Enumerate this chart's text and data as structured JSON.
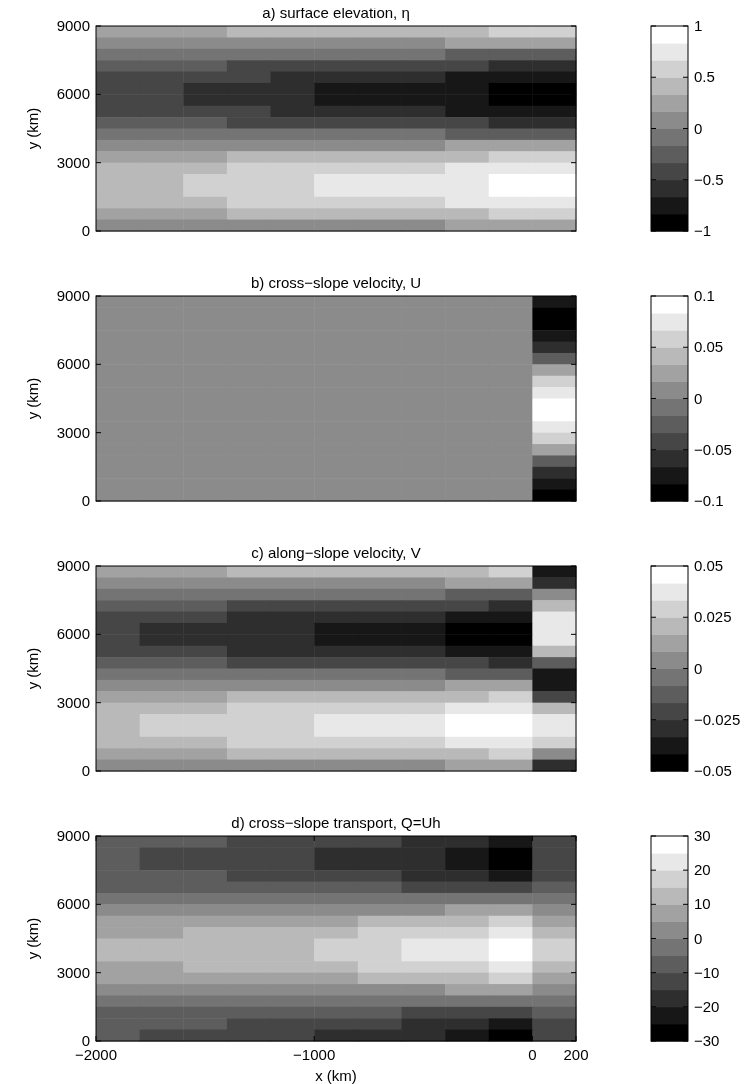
{
  "chart_data": [
    {
      "type": "heatmap",
      "title": "a) surface elevation, η",
      "ylabel": "y (km)",
      "xlim": [
        -2000,
        200
      ],
      "ylim": [
        0,
        9000
      ],
      "yticks": [
        0,
        3000,
        6000,
        9000
      ],
      "tick_labels": "y",
      "clim": [
        -1,
        1
      ],
      "cticks": [
        {
          "value": -1,
          "label": "−1"
        },
        {
          "value": -0.5,
          "label": "−0.5"
        },
        0,
        0.5,
        1
      ],
      "cells": [
        [
          0.25,
          0.28,
          0.31,
          0.34,
          0.36,
          0.39,
          0.42,
          0.45,
          0.48,
          0.53,
          0.56
        ],
        [
          0.09,
          0.1,
          0.11,
          0.12,
          0.13,
          0.14,
          0.15,
          0.16,
          0.17,
          0.19,
          0.2
        ],
        [
          -0.09,
          -0.1,
          -0.11,
          -0.12,
          -0.13,
          -0.14,
          -0.15,
          -0.16,
          -0.17,
          -0.19,
          -0.2
        ],
        [
          -0.25,
          -0.28,
          -0.31,
          -0.34,
          -0.36,
          -0.39,
          -0.42,
          -0.45,
          -0.48,
          -0.53,
          -0.56
        ],
        [
          -0.37,
          -0.42,
          -0.46,
          -0.5,
          -0.54,
          -0.58,
          -0.62,
          -0.66,
          -0.71,
          -0.79,
          -0.83
        ],
        [
          -0.44,
          -0.49,
          -0.54,
          -0.59,
          -0.64,
          -0.69,
          -0.74,
          -0.78,
          -0.83,
          -0.93,
          -0.98
        ],
        [
          -0.44,
          -0.49,
          -0.54,
          -0.59,
          -0.64,
          -0.69,
          -0.74,
          -0.78,
          -0.83,
          -0.93,
          -0.98
        ],
        [
          -0.37,
          -0.42,
          -0.46,
          -0.5,
          -0.54,
          -0.58,
          -0.62,
          -0.66,
          -0.71,
          -0.79,
          -0.83
        ],
        [
          -0.25,
          -0.28,
          -0.31,
          -0.34,
          -0.36,
          -0.39,
          -0.42,
          -0.45,
          -0.48,
          -0.53,
          -0.56
        ],
        [
          -0.09,
          -0.1,
          -0.11,
          -0.12,
          -0.13,
          -0.14,
          -0.15,
          -0.16,
          -0.17,
          -0.19,
          -0.2
        ],
        [
          0.09,
          0.1,
          0.11,
          0.12,
          0.13,
          0.14,
          0.15,
          0.16,
          0.17,
          0.19,
          0.2
        ],
        [
          0.25,
          0.28,
          0.31,
          0.34,
          0.36,
          0.39,
          0.42,
          0.45,
          0.48,
          0.53,
          0.56
        ],
        [
          0.37,
          0.42,
          0.46,
          0.5,
          0.54,
          0.58,
          0.62,
          0.66,
          0.71,
          0.79,
          0.83
        ],
        [
          0.44,
          0.49,
          0.54,
          0.59,
          0.64,
          0.69,
          0.74,
          0.78,
          0.83,
          0.93,
          0.98
        ],
        [
          0.44,
          0.49,
          0.54,
          0.59,
          0.64,
          0.69,
          0.74,
          0.78,
          0.83,
          0.93,
          0.98
        ],
        [
          0.37,
          0.42,
          0.46,
          0.5,
          0.54,
          0.58,
          0.62,
          0.66,
          0.71,
          0.79,
          0.83
        ],
        [
          0.25,
          0.28,
          0.31,
          0.34,
          0.36,
          0.39,
          0.42,
          0.45,
          0.48,
          0.53,
          0.56
        ],
        [
          0.09,
          0.1,
          0.11,
          0.12,
          0.13,
          0.14,
          0.15,
          0.16,
          0.17,
          0.19,
          0.2
        ]
      ]
    },
    {
      "type": "heatmap",
      "title": "b) cross−slope velocity, U",
      "ylabel": "y (km)",
      "xlim": [
        -2000,
        200
      ],
      "ylim": [
        0,
        9000
      ],
      "yticks": [
        0,
        3000,
        6000,
        9000
      ],
      "tick_labels": "y",
      "clim": [
        -0.1,
        0.1
      ],
      "cticks": [
        {
          "value": -0.1,
          "label": "−0.1"
        },
        {
          "value": -0.05,
          "label": "−0.05"
        },
        0,
        0.05,
        0.1
      ],
      "cells": [
        [
          0,
          0,
          0,
          0,
          0,
          0,
          0,
          0,
          0,
          0,
          -0.08
        ],
        [
          0,
          0,
          0,
          0,
          0,
          0,
          0,
          0,
          0,
          0,
          -0.1
        ],
        [
          0,
          0,
          0,
          0,
          0,
          0,
          0,
          0,
          0,
          0,
          -0.1
        ],
        [
          0,
          0,
          0,
          0,
          0,
          0,
          0,
          0,
          0,
          0,
          -0.08
        ],
        [
          0,
          0,
          0,
          0,
          0,
          0,
          0,
          0,
          0,
          0,
          -0.06
        ],
        [
          0,
          0,
          0,
          0,
          0,
          0,
          0,
          0,
          0,
          0,
          -0.02
        ],
        [
          0,
          0,
          0,
          0,
          0,
          0,
          0,
          0,
          0,
          0,
          0.02
        ],
        [
          0,
          0,
          0,
          0,
          0,
          0,
          0,
          0,
          0,
          0,
          0.06
        ],
        [
          0,
          0,
          0,
          0,
          0,
          0,
          0,
          0,
          0,
          0,
          0.08
        ],
        [
          0,
          0,
          0,
          0,
          0,
          0,
          0,
          0,
          0,
          0,
          0.1
        ],
        [
          0,
          0,
          0,
          0,
          0,
          0,
          0,
          0,
          0,
          0,
          0.1
        ],
        [
          0,
          0,
          0,
          0,
          0,
          0,
          0,
          0,
          0,
          0,
          0.08
        ],
        [
          0,
          0,
          0,
          0,
          0,
          0,
          0,
          0,
          0,
          0,
          0.06
        ],
        [
          0,
          0,
          0,
          0,
          0,
          0,
          0,
          0,
          0,
          0,
          0.02
        ],
        [
          0,
          0,
          0,
          0,
          0,
          0,
          0,
          0,
          0,
          0,
          -0.02
        ],
        [
          0,
          0,
          0,
          0,
          0,
          0,
          0,
          0,
          0,
          0,
          -0.06
        ],
        [
          0,
          0,
          0,
          0,
          0,
          0,
          0,
          0,
          0,
          0,
          -0.08
        ],
        [
          0,
          0,
          0,
          0,
          0,
          0,
          0,
          0,
          0,
          0,
          -0.1
        ]
      ]
    },
    {
      "type": "heatmap",
      "title": "c) along−slope velocity, V",
      "ylabel": "y (km)",
      "xlim": [
        -2000,
        200
      ],
      "ylim": [
        0,
        9000
      ],
      "yticks": [
        0,
        3000,
        6000,
        9000
      ],
      "tick_labels": "y",
      "clim": [
        -0.05,
        0.05
      ],
      "cticks": [
        {
          "value": -0.05,
          "label": "−0.05"
        },
        {
          "value": -0.025,
          "label": "−0.025"
        },
        0,
        0.025,
        0.05
      ],
      "cells": [
        [
          0.013,
          0.014,
          0.016,
          0.017,
          0.018,
          0.02,
          0.021,
          0.023,
          0.024,
          0.027,
          -0.04
        ],
        [
          0.005,
          0.005,
          0.006,
          0.006,
          0.007,
          0.007,
          0.008,
          0.008,
          0.009,
          0.01,
          -0.03
        ],
        [
          -0.005,
          -0.005,
          -0.006,
          -0.006,
          -0.007,
          -0.007,
          -0.008,
          -0.008,
          -0.009,
          -0.01,
          0
        ],
        [
          -0.013,
          -0.014,
          -0.016,
          -0.017,
          -0.018,
          -0.02,
          -0.021,
          -0.023,
          -0.024,
          -0.027,
          0.02
        ],
        [
          -0.019,
          -0.021,
          -0.023,
          -0.025,
          -0.027,
          -0.029,
          -0.031,
          -0.033,
          -0.036,
          -0.04,
          0.04
        ],
        [
          -0.022,
          -0.025,
          -0.027,
          -0.03,
          -0.032,
          -0.035,
          -0.037,
          -0.039,
          -0.042,
          -0.047,
          0.04
        ],
        [
          -0.022,
          -0.025,
          -0.027,
          -0.03,
          -0.032,
          -0.035,
          -0.037,
          -0.039,
          -0.042,
          -0.047,
          0.04
        ],
        [
          -0.019,
          -0.021,
          -0.023,
          -0.025,
          -0.027,
          -0.029,
          -0.031,
          -0.033,
          -0.036,
          -0.04,
          0.02
        ],
        [
          -0.013,
          -0.014,
          -0.016,
          -0.017,
          -0.018,
          -0.02,
          -0.021,
          -0.023,
          -0.024,
          -0.027,
          -0.01
        ],
        [
          -0.005,
          -0.005,
          -0.006,
          -0.006,
          -0.007,
          -0.007,
          -0.008,
          -0.008,
          -0.009,
          -0.01,
          -0.04
        ],
        [
          0.005,
          0.005,
          0.006,
          0.006,
          0.007,
          0.007,
          0.008,
          0.008,
          0.009,
          0.01,
          -0.04
        ],
        [
          0.013,
          0.014,
          0.016,
          0.017,
          0.018,
          0.02,
          0.021,
          0.023,
          0.024,
          0.027,
          -0.02
        ],
        [
          0.019,
          0.021,
          0.023,
          0.025,
          0.027,
          0.029,
          0.031,
          0.033,
          0.036,
          0.04,
          0.02
        ],
        [
          0.022,
          0.025,
          0.027,
          0.03,
          0.032,
          0.035,
          0.037,
          0.039,
          0.042,
          0.047,
          0.04
        ],
        [
          0.022,
          0.025,
          0.027,
          0.03,
          0.032,
          0.035,
          0.037,
          0.039,
          0.042,
          0.047,
          0.04
        ],
        [
          0.019,
          0.021,
          0.023,
          0.025,
          0.027,
          0.029,
          0.031,
          0.033,
          0.036,
          0.04,
          0.03
        ],
        [
          0.013,
          0.014,
          0.016,
          0.017,
          0.018,
          0.02,
          0.021,
          0.023,
          0.024,
          0.027,
          0
        ],
        [
          0.005,
          0.005,
          0.006,
          0.006,
          0.007,
          0.007,
          0.008,
          0.008,
          0.009,
          0.01,
          -0.03
        ]
      ]
    },
    {
      "type": "heatmap",
      "title": "d) cross−slope transport, Q=Uh",
      "xlabel": "x (km)",
      "ylabel": "y (km)",
      "xlim": [
        -2000,
        200
      ],
      "ylim": [
        0,
        9000
      ],
      "xticks": [
        {
          "value": -2000,
          "label": "−2000"
        },
        {
          "value": -1000,
          "label": "−1000"
        },
        0,
        200
      ],
      "yticks": [
        0,
        3000,
        6000,
        9000
      ],
      "clim": [
        -30,
        30
      ],
      "cticks": [
        {
          "value": -30,
          "label": "−30"
        },
        {
          "value": -20,
          "label": "−20"
        },
        {
          "value": -10,
          "label": "−10"
        },
        0,
        10,
        20,
        30
      ],
      "cells": [
        [
          -8,
          -9,
          -10,
          -11,
          -12,
          -13,
          -15,
          -17,
          -19,
          -22,
          -12
        ],
        [
          -10,
          -11,
          -12,
          -13,
          -14,
          -16,
          -18,
          -20,
          -23,
          -26,
          -15
        ],
        [
          -10,
          -11,
          -12,
          -13,
          -14,
          -16,
          -18,
          -20,
          -23,
          -26,
          -15
        ],
        [
          -8,
          -9,
          -10,
          -11,
          -12,
          -13,
          -15,
          -17,
          -19,
          -22,
          -12
        ],
        [
          -6,
          -6,
          -7,
          -7,
          -8,
          -9,
          -10,
          -11,
          -13,
          -15,
          -8
        ],
        [
          -2,
          -2,
          -2,
          -3,
          -3,
          -3,
          -4,
          -4,
          -5,
          -5,
          -3
        ],
        [
          2,
          2,
          2,
          3,
          3,
          3,
          4,
          4,
          5,
          5,
          3
        ],
        [
          6,
          6,
          7,
          7,
          8,
          9,
          10,
          11,
          13,
          15,
          8
        ],
        [
          8,
          9,
          10,
          11,
          12,
          13,
          15,
          17,
          19,
          22,
          12
        ],
        [
          10,
          11,
          12,
          13,
          14,
          16,
          18,
          20,
          23,
          26,
          15
        ],
        [
          10,
          11,
          12,
          13,
          14,
          16,
          18,
          20,
          23,
          26,
          15
        ],
        [
          8,
          9,
          10,
          11,
          12,
          13,
          15,
          17,
          19,
          22,
          12
        ],
        [
          6,
          6,
          7,
          7,
          8,
          9,
          10,
          11,
          13,
          15,
          8
        ],
        [
          2,
          2,
          2,
          3,
          3,
          3,
          4,
          4,
          5,
          5,
          3
        ],
        [
          -2,
          -2,
          -2,
          -3,
          -3,
          -3,
          -4,
          -4,
          -5,
          -5,
          -3
        ],
        [
          -6,
          -6,
          -7,
          -7,
          -8,
          -9,
          -10,
          -11,
          -13,
          -15,
          -8
        ],
        [
          -8,
          -9,
          -10,
          -11,
          -12,
          -13,
          -15,
          -17,
          -19,
          -22,
          -12
        ],
        [
          -10,
          -11,
          -12,
          -13,
          -14,
          -16,
          -18,
          -20,
          -23,
          -26,
          -15
        ]
      ]
    }
  ]
}
